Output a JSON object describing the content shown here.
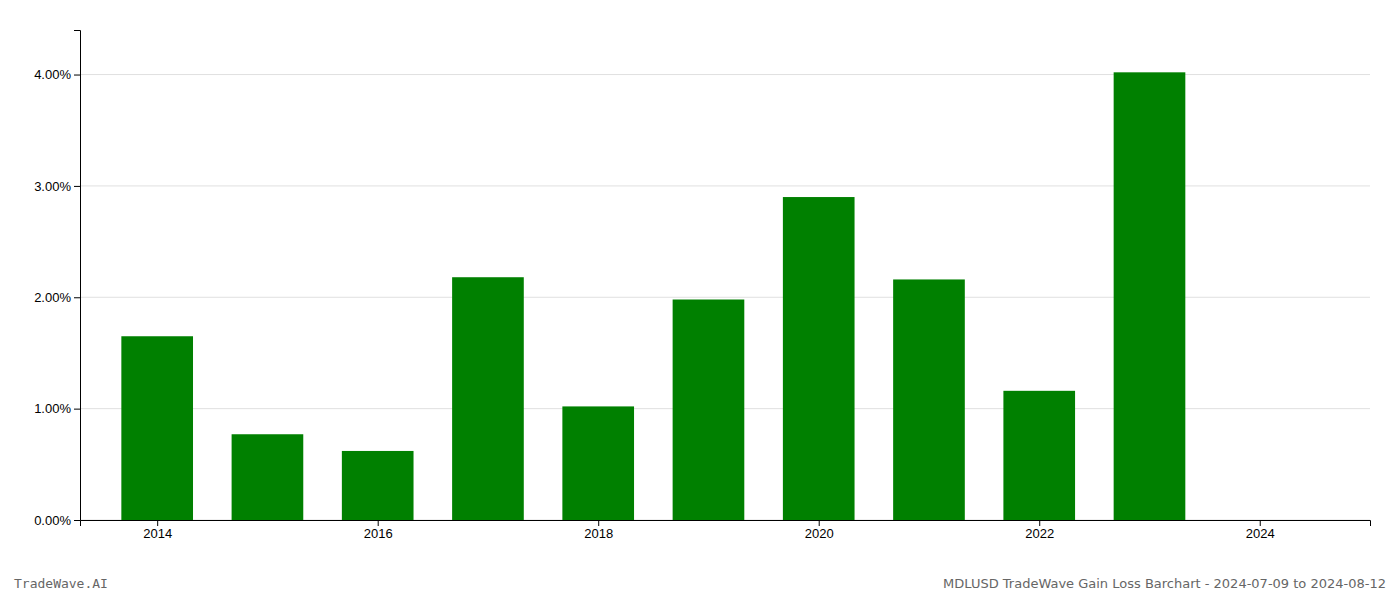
{
  "chart_data": {
    "type": "bar",
    "x": [
      2014,
      2015,
      2016,
      2017,
      2018,
      2019,
      2020,
      2021,
      2022,
      2023,
      2024
    ],
    "values": [
      1.65,
      0.77,
      0.62,
      2.18,
      1.02,
      1.98,
      2.9,
      2.16,
      1.16,
      4.02,
      0.0
    ],
    "color": "#008000",
    "xlim": [
      2013.3,
      2025.0
    ],
    "xticks": [
      2014,
      2016,
      2018,
      2020,
      2022,
      2024
    ],
    "ylim": [
      0,
      4.4
    ],
    "yticks": [
      {
        "value": 0.0,
        "label": "0.00%"
      },
      {
        "value": 1.0,
        "label": "1.00%"
      },
      {
        "value": 2.0,
        "label": "2.00%"
      },
      {
        "value": 3.0,
        "label": "3.00%"
      },
      {
        "value": 4.0,
        "label": "4.00%"
      }
    ],
    "grid": true,
    "annotations": [
      "TradeWave.AI",
      "MDLUSD TradeWave Gain Loss Barchart - 2024-07-09 to 2024-08-12"
    ]
  }
}
